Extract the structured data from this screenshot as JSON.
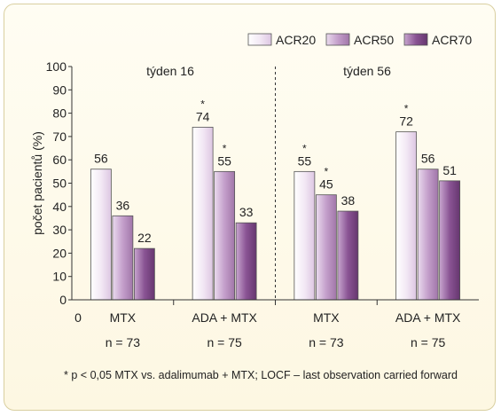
{
  "chart_data": {
    "type": "bar",
    "ylabel": "počet pacientů (%)",
    "ylim": [
      0,
      100
    ],
    "yticks": [
      0,
      10,
      20,
      30,
      40,
      50,
      60,
      70,
      80,
      90,
      100
    ],
    "origin_label": "0",
    "legend_position": "top-right",
    "series": [
      {
        "name": "ACR20",
        "color": "#f6eef7"
      },
      {
        "name": "ACR50",
        "color": "#c9a4cf"
      },
      {
        "name": "ACR70",
        "color": "#8a5494"
      }
    ],
    "panels": [
      {
        "label": "týden 16"
      },
      {
        "label": "týden 56"
      }
    ],
    "groups": [
      {
        "label": "MTX",
        "n": "n = 73",
        "values": [
          56,
          36,
          22
        ],
        "marks": [
          "",
          "",
          ""
        ]
      },
      {
        "label": "ADA + MTX",
        "n": "n = 75",
        "values": [
          74,
          55,
          33
        ],
        "marks": [
          "*",
          "*",
          ""
        ]
      },
      {
        "label": "MTX",
        "n": "n = 73",
        "values": [
          55,
          45,
          38
        ],
        "marks": [
          "*",
          "*",
          ""
        ]
      },
      {
        "label": "ADA + MTX",
        "n": "n = 75",
        "values": [
          72,
          56,
          51
        ],
        "marks": [
          "*",
          "",
          ""
        ]
      }
    ]
  },
  "footnote": "* p < 0,05 MTX vs. adalimumab + MTX; LOCF – last observation carried forward"
}
